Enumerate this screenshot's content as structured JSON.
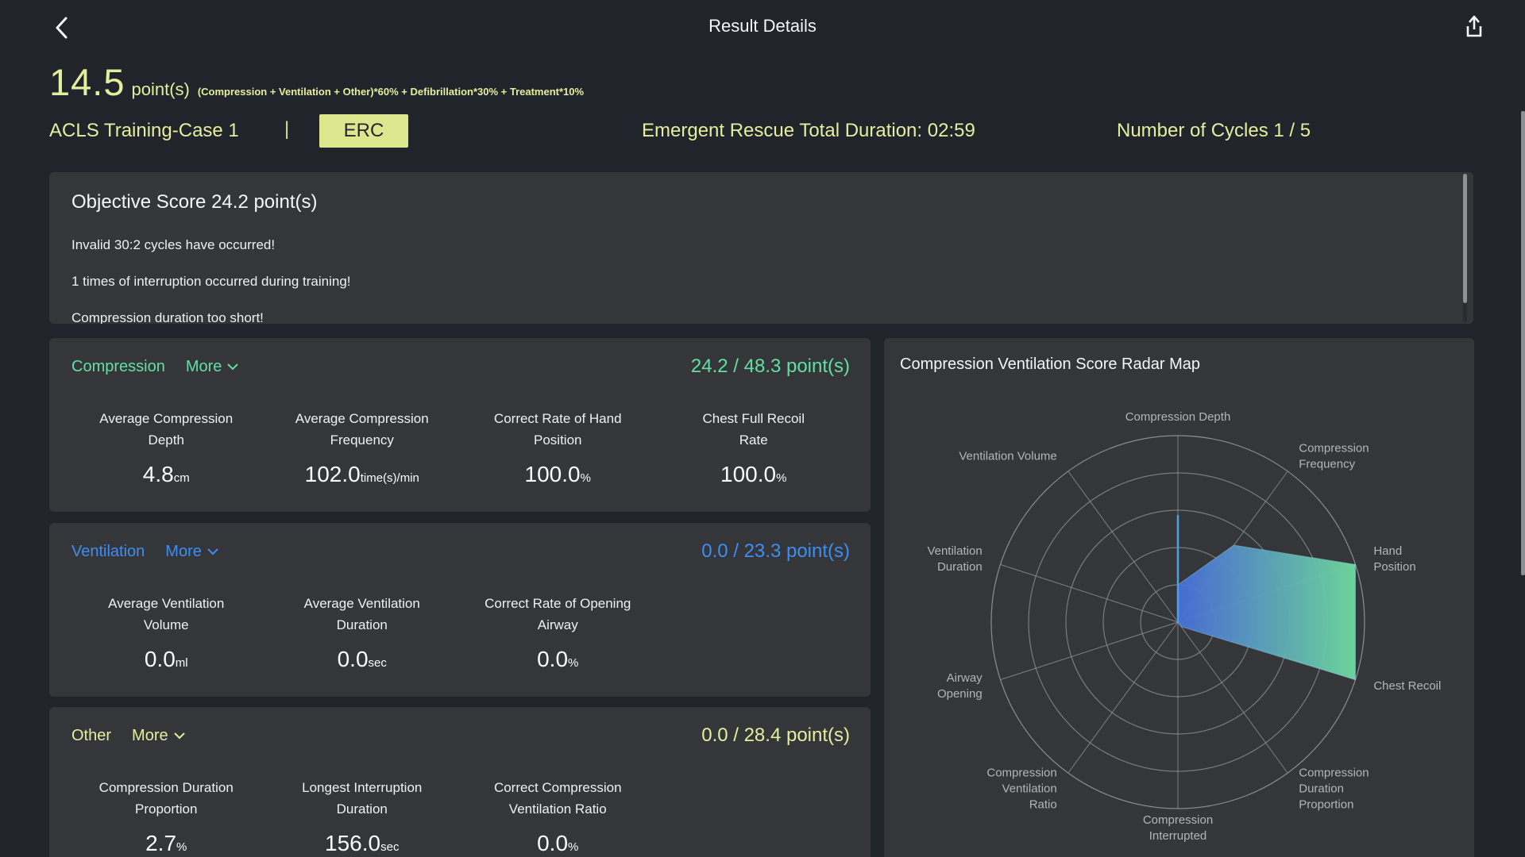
{
  "header": {
    "title": "Result Details",
    "back_icon": "chevron-left",
    "share_icon": "share-export"
  },
  "score": {
    "value": "14.5",
    "unit": "point(s)",
    "formula": "(Compression + Ventilation + Other)*60% + Defibrillation*30% + Treatment*10%"
  },
  "session": {
    "case_name": "ACLS Training-Case 1",
    "divider": "|",
    "mode_badge": "ERC",
    "total_duration": "Emergent Rescue Total Duration: 02:59",
    "cycles": "Number of Cycles 1 / 5"
  },
  "objective": {
    "title": "Objective Score 24.2 point(s)",
    "messages": [
      "Invalid 30:2 cycles have occurred!",
      "1 times of interruption occurred during training!",
      "Compression duration too short!"
    ]
  },
  "sections": [
    {
      "name": "Compression",
      "more_label": "More",
      "score": "24.2 / 48.3 point(s)",
      "color": "#61e0a1",
      "metrics": [
        {
          "label_line1": "Average Compression",
          "label_line2": "Depth",
          "value": "4.8",
          "unit": "cm"
        },
        {
          "label_line1": "Average Compression",
          "label_line2": "Frequency",
          "value": "102.0",
          "unit": "time(s)/min"
        },
        {
          "label_line1": "Correct Rate of Hand",
          "label_line2": "Position",
          "value": "100.0",
          "unit": "%"
        },
        {
          "label_line1": "Chest Full Recoil",
          "label_line2": "Rate",
          "value": "100.0",
          "unit": "%"
        }
      ]
    },
    {
      "name": "Ventilation",
      "more_label": "More",
      "score": "0.0 / 23.3 point(s)",
      "color": "#3d8ef2",
      "metrics": [
        {
          "label_line1": "Average Ventilation",
          "label_line2": "Volume",
          "value": "0.0",
          "unit": "ml"
        },
        {
          "label_line1": "Average Ventilation",
          "label_line2": "Duration",
          "value": "0.0",
          "unit": "sec"
        },
        {
          "label_line1": "Correct Rate of Opening",
          "label_line2": "Airway",
          "value": "0.0",
          "unit": "%"
        }
      ]
    },
    {
      "name": "Other",
      "more_label": "More",
      "score": "0.0 / 28.4 point(s)",
      "color": "#e5ed9e",
      "metrics": [
        {
          "label_line1": "Compression Duration",
          "label_line2": "Proportion",
          "value": "2.7",
          "unit": "%"
        },
        {
          "label_line1": "Longest Interruption",
          "label_line2": "Duration",
          "value": "156.0",
          "unit": "sec"
        },
        {
          "label_line1": "Correct Compression",
          "label_line2": "Ventilation Ratio",
          "value": "0.0",
          "unit": "%"
        }
      ]
    }
  ],
  "radar": {
    "title": "Compression Ventilation Score Radar Map",
    "chart_data": {
      "type": "radar",
      "title": "Compression Ventilation Score Radar Map",
      "indicators": [
        "Compression Depth",
        "Compression Frequency",
        "Hand Position",
        "Chest Recoil",
        "Compression Duration Proportion",
        "Compression Interrupted",
        "Compression Ventilation Ratio",
        "Airway Opening",
        "Ventilation Duration",
        "Ventilation Volume"
      ],
      "label_lines": [
        [
          "Compression Depth"
        ],
        [
          "Compression",
          "Frequency"
        ],
        [
          "Hand",
          "Position"
        ],
        [
          "Chest Recoil"
        ],
        [
          "Compression",
          "Duration",
          "Proportion"
        ],
        [
          "Compression",
          "Interrupted"
        ],
        [
          "Compression",
          "Ventilation",
          "Ratio"
        ],
        [
          "Airway",
          "Opening"
        ],
        [
          "Ventilation",
          "Duration"
        ],
        [
          "Ventilation Volume"
        ]
      ],
      "scale": [
        0,
        1
      ],
      "rings": 5,
      "grid_color": "#797b7f",
      "label_color": "#b3b5b9",
      "series": [
        {
          "name": "score-area",
          "values": [
            0.2,
            0.51,
            1.0,
            1.0,
            0.03,
            0,
            0,
            0,
            0,
            0
          ],
          "fill_gradient": [
            "#4a6fdb",
            "#6fdb9f"
          ]
        },
        {
          "name": "compression-depth-line",
          "values": [
            0.57,
            0,
            0,
            0,
            0,
            0,
            0,
            0,
            0,
            0
          ],
          "line_color": "#4aa3e0"
        }
      ]
    }
  }
}
